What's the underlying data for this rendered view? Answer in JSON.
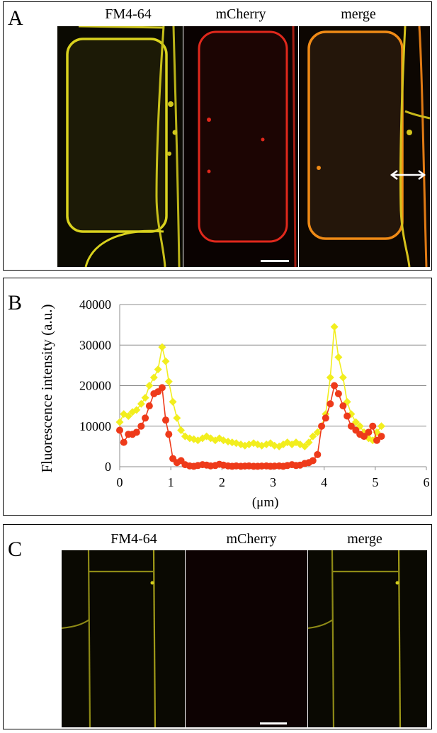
{
  "panel_a": {
    "letter": "A",
    "channels": [
      "FM4-64",
      "mCherry",
      "merge"
    ]
  },
  "panel_b": {
    "letter": "B"
  },
  "panel_c": {
    "letter": "C",
    "channels": [
      "FM4-64",
      "mCherry",
      "merge"
    ]
  },
  "colors": {
    "fm4_64_membrane": "#d9d21e",
    "mcherry_membrane": "#e0281c",
    "merge_membrane": "#ef8a16",
    "series_yellow": "#f2ee1e",
    "series_red": "#ee3a1a",
    "gridline": "#8c8c8c"
  },
  "chart_data": {
    "type": "line",
    "title": "",
    "xlabel": "(μm)",
    "ylabel": "Fluorescence intensity (a.u.)",
    "xlim": [
      0,
      6
    ],
    "ylim": [
      0,
      40000
    ],
    "xticks": [
      "0",
      "1",
      "2",
      "3",
      "4",
      "5",
      "6"
    ],
    "yticks": [
      "0",
      "10000",
      "20000",
      "30000",
      "40000"
    ],
    "grid": "horizontal",
    "legend": "none",
    "series": [
      {
        "marker": "diamond",
        "color": "#f2ee1e",
        "x": [
          0,
          0.08,
          0.17,
          0.25,
          0.33,
          0.42,
          0.5,
          0.58,
          0.67,
          0.75,
          0.83,
          0.9,
          0.96,
          1.04,
          1.12,
          1.2,
          1.28,
          1.37,
          1.45,
          1.53,
          1.62,
          1.7,
          1.78,
          1.87,
          1.95,
          2.03,
          2.12,
          2.2,
          2.28,
          2.37,
          2.45,
          2.53,
          2.62,
          2.7,
          2.78,
          2.87,
          2.95,
          3.03,
          3.12,
          3.2,
          3.28,
          3.37,
          3.45,
          3.53,
          3.62,
          3.7,
          3.78,
          3.87,
          3.95,
          4.03,
          4.12,
          4.2,
          4.28,
          4.37,
          4.45,
          4.53,
          4.62,
          4.7,
          4.78,
          4.87,
          4.95,
          5.03,
          5.12
        ],
        "values": [
          11000,
          13000,
          12500,
          13500,
          14000,
          15500,
          17000,
          20000,
          22000,
          24000,
          29500,
          26000,
          21000,
          16000,
          12000,
          9000,
          7500,
          7000,
          6800,
          6500,
          7000,
          7500,
          7000,
          6500,
          7000,
          6500,
          6200,
          6000,
          5800,
          5500,
          5200,
          5500,
          5800,
          5500,
          5200,
          5500,
          5800,
          5200,
          5000,
          5500,
          6000,
          5500,
          6000,
          5500,
          5000,
          6000,
          7500,
          8500,
          10000,
          13000,
          22000,
          34500,
          27000,
          22000,
          16000,
          13000,
          11000,
          10000,
          8500,
          7000,
          6500,
          8500,
          10000
        ]
      },
      {
        "marker": "circle",
        "color": "#ee3a1a",
        "x": [
          0,
          0.08,
          0.17,
          0.25,
          0.33,
          0.42,
          0.5,
          0.58,
          0.67,
          0.75,
          0.83,
          0.9,
          0.96,
          1.04,
          1.12,
          1.2,
          1.28,
          1.37,
          1.45,
          1.53,
          1.62,
          1.7,
          1.78,
          1.87,
          1.95,
          2.03,
          2.12,
          2.2,
          2.28,
          2.37,
          2.45,
          2.53,
          2.62,
          2.7,
          2.78,
          2.87,
          2.95,
          3.03,
          3.12,
          3.2,
          3.28,
          3.37,
          3.45,
          3.53,
          3.62,
          3.7,
          3.78,
          3.87,
          3.95,
          4.03,
          4.12,
          4.2,
          4.28,
          4.37,
          4.45,
          4.53,
          4.62,
          4.7,
          4.78,
          4.87,
          4.95,
          5.03,
          5.12
        ],
        "values": [
          9000,
          6000,
          8000,
          8000,
          8500,
          10000,
          12000,
          15000,
          18000,
          18500,
          19500,
          11500,
          8000,
          2000,
          1000,
          1500,
          500,
          200,
          100,
          300,
          500,
          400,
          200,
          300,
          600,
          400,
          200,
          100,
          200,
          100,
          150,
          200,
          100,
          100,
          150,
          200,
          100,
          150,
          200,
          100,
          300,
          500,
          300,
          400,
          800,
          1000,
          1500,
          3000,
          10000,
          12000,
          15500,
          20000,
          18000,
          15000,
          12500,
          10000,
          9000,
          8000,
          7500,
          8500,
          10000,
          6500,
          7500
        ]
      }
    ]
  }
}
